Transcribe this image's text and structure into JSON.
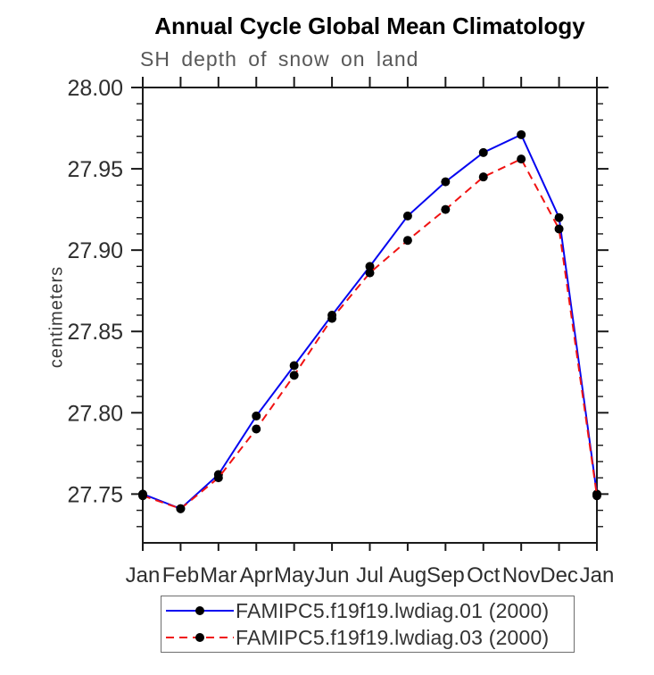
{
  "page": {
    "background": "#ffffff"
  },
  "chart_data": {
    "type": "line",
    "title": "Annual Cycle Global Mean Climatology",
    "subtitle": "SH depth of snow on land",
    "ylabel": "centimeters",
    "xlabel": "",
    "x_categories": [
      "Jan",
      "Feb",
      "Mar",
      "Apr",
      "May",
      "Jun",
      "Jul",
      "Aug",
      "Sep",
      "Oct",
      "Nov",
      "Dec",
      "Jan"
    ],
    "ylim": [
      27.72,
      28.0
    ],
    "y_major_ticks": [
      28.0,
      27.95,
      27.9,
      27.85,
      27.8,
      27.75
    ],
    "y_tick_labels": [
      "28.00",
      "27.95",
      "27.90",
      "27.85",
      "27.80",
      "27.75"
    ],
    "y_minor_step": 0.01,
    "grid": "off",
    "legend_position": "bottom-center",
    "axis_color": "#1a1a1a",
    "marker_color": "#000000",
    "series": [
      {
        "name": "FAMIPC5.f19f19.lwdiag.01 (2000)",
        "color": "#0505f0",
        "line_style": "solid",
        "marker": "filled-circle",
        "values": [
          27.75,
          27.741,
          27.762,
          27.798,
          27.829,
          27.86,
          27.89,
          27.921,
          27.942,
          27.96,
          27.971,
          27.92,
          27.75
        ]
      },
      {
        "name": "FAMIPC5.f19f19.lwdiag.03 (2000)",
        "color": "#f01212",
        "line_style": "dashed",
        "marker": "filled-circle",
        "values": [
          27.749,
          27.741,
          27.76,
          27.79,
          27.823,
          27.858,
          27.886,
          27.906,
          27.925,
          27.945,
          27.956,
          27.913,
          27.749
        ]
      }
    ]
  }
}
